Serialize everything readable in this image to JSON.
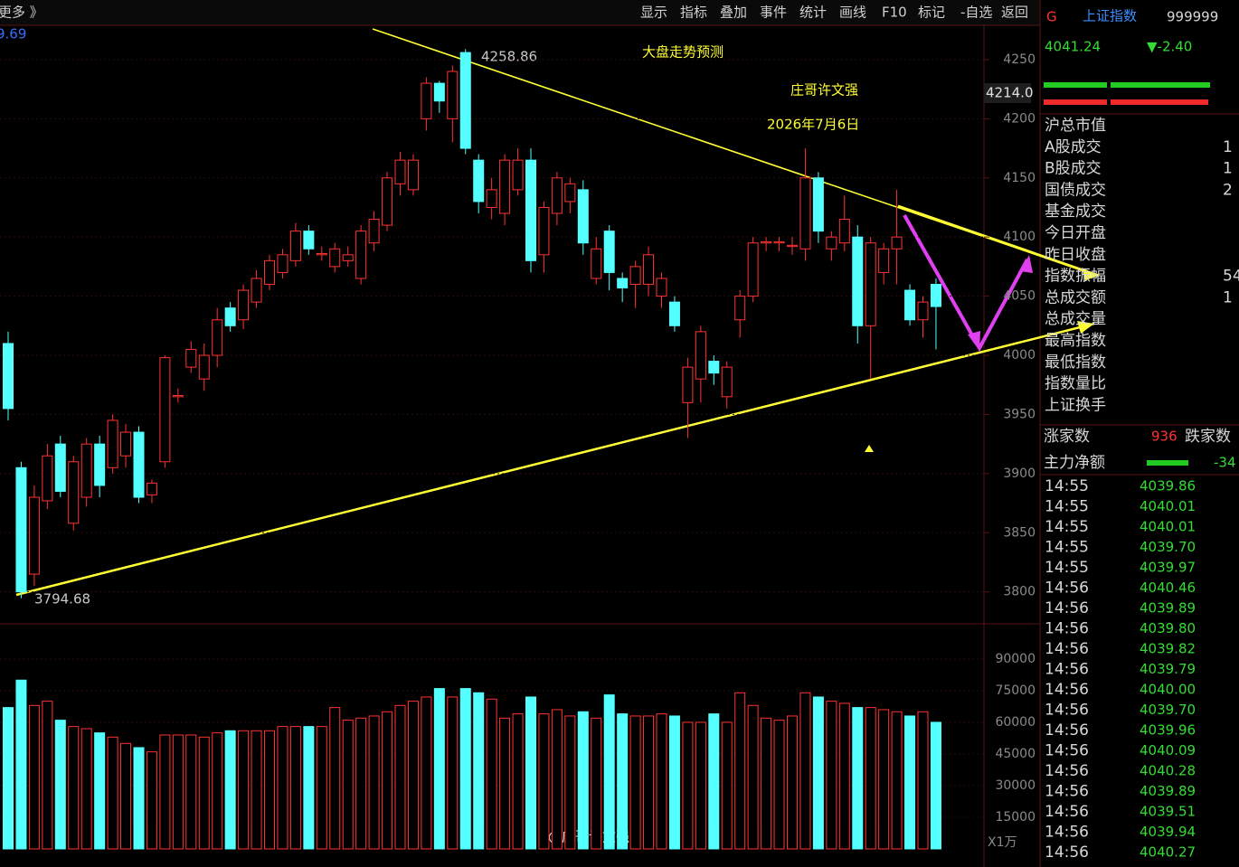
{
  "toolbar": {
    "left": "更多 》",
    "items": [
      "显示",
      "指标",
      "叠加",
      "事件",
      "统计",
      "画线",
      "F10",
      "标记",
      "-自选",
      "返回"
    ]
  },
  "chart_data": {
    "type": "candlestick",
    "corner_value": "9.69",
    "annotations": {
      "title": "大盘走势预测",
      "author": "庄哥许文强",
      "date": "2026年7月6日",
      "max_label": "4258.86",
      "min_label": "3794.68",
      "cursor_label": "4214.0",
      "watermark": "@庄哥许文强",
      "volume_unit": "X1万"
    },
    "open": [
      4010,
      3905,
      3815,
      3877,
      3925,
      3858,
      3880,
      3925,
      3905,
      3915,
      3935,
      3882,
      3910,
      3965,
      3990,
      3980,
      4000,
      4040,
      4030,
      4045,
      4060,
      4070,
      4080,
      4105,
      4085,
      4075,
      4080,
      4065,
      4095,
      4110,
      4145,
      4140,
      4200,
      4230,
      4200,
      4256,
      4165,
      4125,
      4120,
      4140,
      4165,
      4085,
      4120,
      4130,
      4140,
      4065,
      4105,
      4065,
      4060,
      4060,
      4050,
      4045,
      3960,
      3980,
      3995,
      3965,
      4030,
      4050,
      4095,
      4095,
      4092,
      4090,
      4150,
      4090,
      4095,
      4100,
      4025,
      4070,
      4090,
      4055,
      4030,
      4060
    ],
    "high": [
      4020,
      3910,
      3890,
      3925,
      3932,
      3915,
      3930,
      3932,
      3950,
      3942,
      3940,
      3895,
      4000,
      3972,
      4012,
      4010,
      4040,
      4045,
      4060,
      4072,
      4085,
      4090,
      4112,
      4110,
      4092,
      4095,
      4092,
      4110,
      4122,
      4155,
      4172,
      4170,
      4235,
      4232,
      4245,
      4258.86,
      4170,
      4150,
      4170,
      4175,
      4175,
      4130,
      4155,
      4150,
      4148,
      4100,
      4110,
      4070,
      4080,
      4092,
      4070,
      4050,
      3998,
      4025,
      4000,
      3995,
      4055,
      4100,
      4100,
      4100,
      4100,
      4175,
      4155,
      4105,
      4135,
      4110,
      4100,
      4095,
      4140,
      4060,
      4050,
      4065
    ],
    "low": [
      3945,
      3794.68,
      3805,
      3870,
      3880,
      3852,
      3872,
      3880,
      3900,
      3905,
      3875,
      3875,
      3905,
      3960,
      3985,
      3970,
      3990,
      4020,
      4022,
      4040,
      4055,
      4065,
      4075,
      4085,
      4080,
      4070,
      4075,
      4060,
      4088,
      4105,
      4135,
      4135,
      4190,
      4205,
      4180,
      4170,
      4120,
      4115,
      4110,
      4135,
      4070,
      4070,
      4110,
      4120,
      4085,
      4060,
      4055,
      4045,
      4040,
      4050,
      4040,
      4020,
      3930,
      3960,
      3975,
      3955,
      4015,
      4045,
      4088,
      4088,
      4085,
      4080,
      4095,
      4080,
      4088,
      4010,
      3980,
      4060,
      4060,
      4025,
      4015,
      4005
    ],
    "close": [
      3955,
      3800,
      3880,
      3915,
      3885,
      3910,
      3925,
      3890,
      3945,
      3935,
      3880,
      3892,
      3998,
      3966,
      4005,
      4000,
      4030,
      4025,
      4055,
      4065,
      4080,
      4085,
      4105,
      4090,
      4086,
      4090,
      4085,
      4105,
      4115,
      4150,
      4165,
      4165,
      4230,
      4215,
      4240,
      4175,
      4130,
      4140,
      4165,
      4165,
      4080,
      4125,
      4150,
      4145,
      4095,
      4090,
      4070,
      4057,
      4075,
      4085,
      4065,
      4025,
      3990,
      4020,
      3985,
      3990,
      4050,
      4095,
      4096,
      4096,
      4093,
      4150,
      4105,
      4100,
      4115,
      4025,
      4095,
      4090,
      4100,
      4030,
      4045,
      4041.24
    ],
    "volume": [
      67000,
      80000,
      68000,
      70000,
      61000,
      58000,
      57000,
      55000,
      53000,
      50000,
      48000,
      46000,
      54000,
      54000,
      54000,
      53000,
      55000,
      56000,
      56000,
      56000,
      56000,
      58000,
      58000,
      58000,
      58000,
      67000,
      61000,
      62000,
      63000,
      65000,
      68000,
      70000,
      72000,
      76000,
      72000,
      76000,
      74000,
      71000,
      62000,
      64000,
      72000,
      64000,
      66000,
      63000,
      65000,
      62000,
      73000,
      64000,
      63000,
      63000,
      64000,
      63000,
      60000,
      60000,
      64000,
      60000,
      74000,
      68000,
      62000,
      61000,
      63000,
      74000,
      72000,
      70000,
      69000,
      67000,
      67000,
      66000,
      65000,
      63000,
      65000,
      60000
    ],
    "up_color": "#ff3232",
    "down_color": "#54ffff",
    "ylim": [
      3773,
      4279
    ],
    "yticks": [
      3800,
      3850,
      3900,
      3950,
      4000,
      4050,
      4100,
      4150,
      4200,
      4250
    ],
    "vlim": [
      0,
      103000
    ],
    "vticks": [
      15000,
      30000,
      45000,
      60000,
      75000,
      90000
    ]
  },
  "quote": {
    "flag": "G",
    "name": "上证指数",
    "code": "999999",
    "price": "4041.24",
    "change": "▼-2.40",
    "rows": [
      {
        "label": "沪总市值",
        "value": ""
      },
      {
        "label": "A股成交",
        "value": "1"
      },
      {
        "label": "B股成交",
        "value": "1"
      },
      {
        "label": "国债成交",
        "value": "2"
      },
      {
        "label": "基金成交",
        "value": ""
      },
      {
        "label": "今日开盘",
        "value": ""
      },
      {
        "label": "昨日收盘",
        "value": ""
      },
      {
        "label": "指数振幅",
        "value": "54"
      },
      {
        "label": "总成交额",
        "value": "1"
      },
      {
        "label": "总成交量",
        "value": ""
      },
      {
        "label": "最高指数",
        "value": ""
      },
      {
        "label": "最低指数",
        "value": ""
      },
      {
        "label": "指数量比",
        "value": ""
      },
      {
        "label": "上证换手",
        "value": ""
      }
    ],
    "breadth": {
      "up_label": "涨家数",
      "up": "936",
      "down_label": "跌家数"
    },
    "net": {
      "label": "主力净额",
      "value": "-34"
    },
    "ticks": [
      [
        "14:55",
        "4039.86"
      ],
      [
        "14:55",
        "4040.01"
      ],
      [
        "14:55",
        "4040.01"
      ],
      [
        "14:55",
        "4039.70"
      ],
      [
        "14:55",
        "4039.97"
      ],
      [
        "14:56",
        "4040.46"
      ],
      [
        "14:56",
        "4039.89"
      ],
      [
        "14:56",
        "4039.80"
      ],
      [
        "14:56",
        "4039.82"
      ],
      [
        "14:56",
        "4039.79"
      ],
      [
        "14:56",
        "4040.00"
      ],
      [
        "14:56",
        "4039.70"
      ],
      [
        "14:56",
        "4039.96"
      ],
      [
        "14:56",
        "4040.09"
      ],
      [
        "14:56",
        "4040.28"
      ],
      [
        "14:56",
        "4039.89"
      ],
      [
        "14:56",
        "4039.51"
      ],
      [
        "14:56",
        "4039.94"
      ],
      [
        "14:56",
        "4040.27"
      ]
    ]
  }
}
